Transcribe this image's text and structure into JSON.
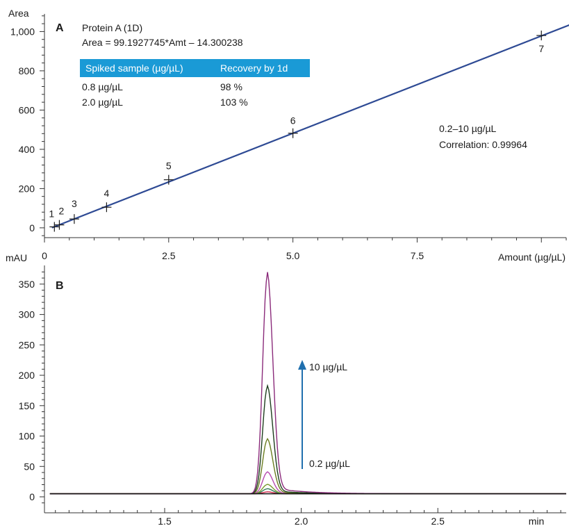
{
  "chart_data": [
    {
      "panel": "A",
      "type": "scatter",
      "ylabel": "Area",
      "xlabel": "Amount (µg/µL)",
      "xlim": [
        0,
        10.5
      ],
      "ylim": [
        -50,
        1090
      ],
      "x_ticks": [
        "0",
        "2.5",
        "5.0",
        "7.5"
      ],
      "y_ticks": [
        "0",
        "200",
        "400",
        "600",
        "800",
        "1,000"
      ],
      "title": "Protein A (1D)",
      "equation": "Area = 99.1927745*Amt – 14.300238",
      "range_note": "0.2–10 µg/µL",
      "correlation": "Correlation: 0.99964",
      "fit": {
        "slope": 99.1927745,
        "intercept": -14.300238,
        "color": "#2e4a94"
      },
      "points": [
        {
          "label": "1",
          "x": 0.2,
          "y": 5
        },
        {
          "label": "2",
          "x": 0.3,
          "y": 15
        },
        {
          "label": "3",
          "x": 0.6,
          "y": 45
        },
        {
          "label": "4",
          "x": 1.25,
          "y": 105
        },
        {
          "label": "5",
          "x": 2.5,
          "y": 245
        },
        {
          "label": "6",
          "x": 5.0,
          "y": 482
        },
        {
          "label": "7",
          "x": 10.0,
          "y": 980
        }
      ],
      "table": {
        "header_color": "#1a9ad6",
        "headers": [
          "Spiked sample (µg/µL)",
          "Recovery by 1d"
        ],
        "rows": [
          [
            "0.8 µg/µL",
            "98 %"
          ],
          [
            "2.0 µg/µL",
            "103 %"
          ]
        ]
      }
    },
    {
      "panel": "B",
      "type": "line",
      "ylabel": "mAU",
      "xlabel": "min",
      "xlim": [
        1.06,
        2.97
      ],
      "ylim": [
        -15,
        375
      ],
      "x_ticks": [
        "1.5",
        "2.0",
        "2.5"
      ],
      "y_ticks": [
        "0",
        "50",
        "100",
        "150",
        "200",
        "250",
        "300",
        "350"
      ],
      "baseline": 5,
      "peak_x": 1.875,
      "series": [
        {
          "peak": 8,
          "color": "#cc2244"
        },
        {
          "peak": 13,
          "color": "#2f7a54"
        },
        {
          "peak": 20,
          "color": "#7a9a30"
        },
        {
          "peak": 40,
          "color": "#b84ab0"
        },
        {
          "peak": 93,
          "color": "#6b7d20"
        },
        {
          "peak": 178,
          "color": "#1d3d1d"
        },
        {
          "peak": 360,
          "color": "#8a2a7a"
        }
      ],
      "arrow": {
        "color": "#1f6fae",
        "top_label": "10 µg/µL",
        "bottom_label": "0.2 µg/µL"
      }
    }
  ]
}
